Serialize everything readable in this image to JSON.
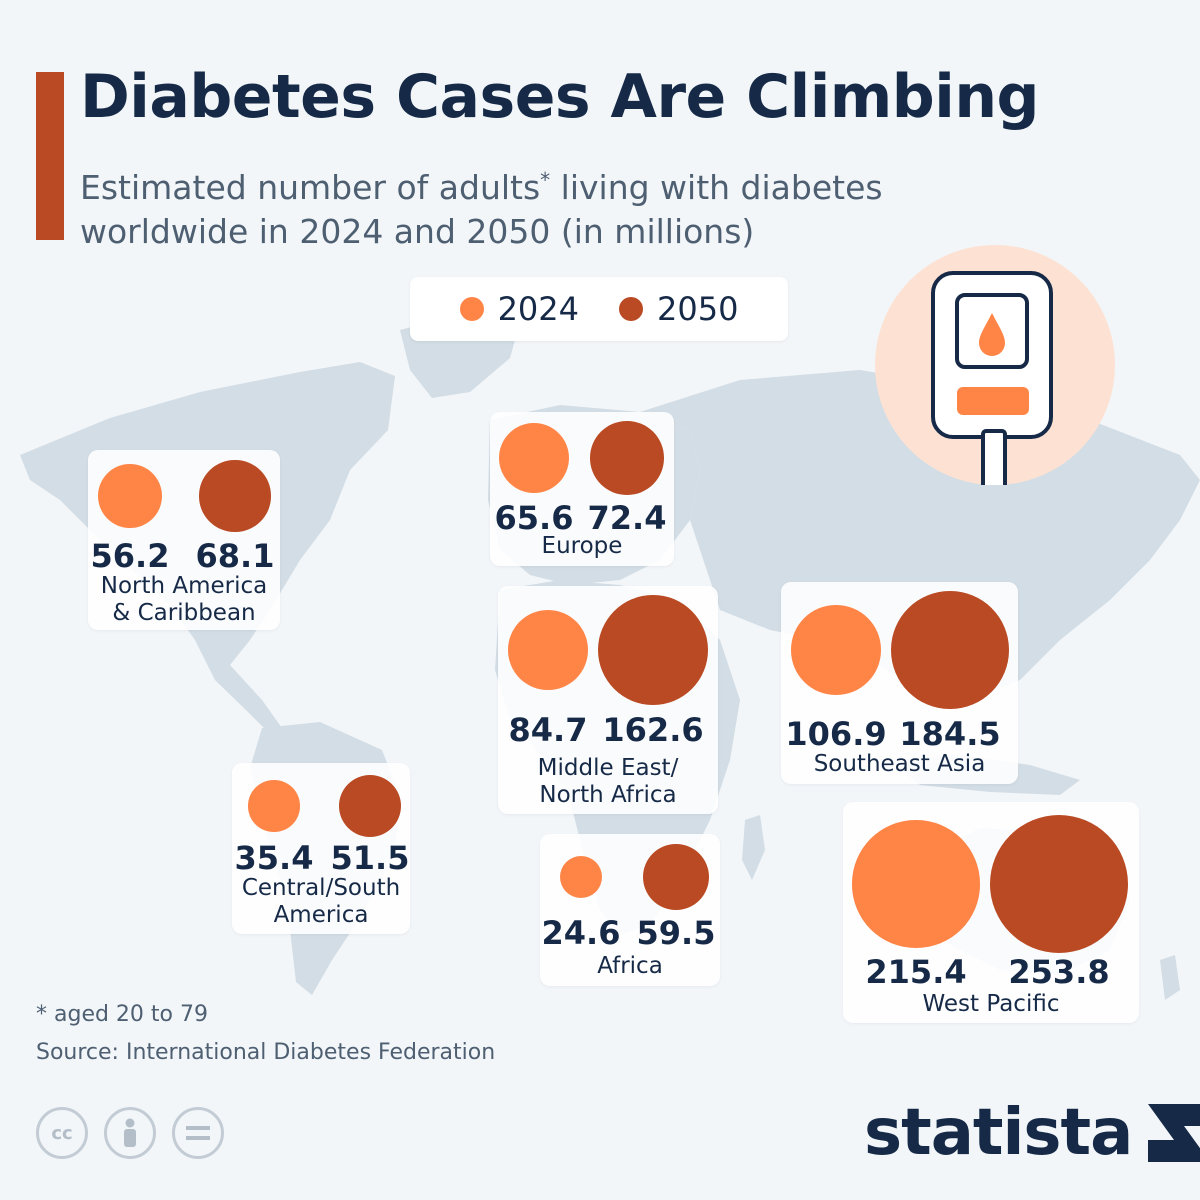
{
  "header": {
    "title": "Diabetes Cases Are Climbing",
    "subtitle_main": "Estimated number of adults",
    "subtitle_mark": "*",
    "subtitle_rest": " living with diabetes worldwide in 2024 and 2050 (in millions)"
  },
  "legend": {
    "items": [
      {
        "label": "2024",
        "color": "#ff8547"
      },
      {
        "label": "2050",
        "color": "#b94a23"
      }
    ]
  },
  "colors": {
    "accent": "#b94a23",
    "y2024": "#ff8547",
    "y2050": "#b94a23",
    "map": "#d3dde5",
    "title": "#162a47",
    "icon_bg": "#fde2d4"
  },
  "icons": [
    "glucose-meter-icon",
    "cc-license-icon",
    "attribution-icon",
    "no-derivatives-icon",
    "statista-logo-icon"
  ],
  "chart_data": {
    "type": "bubble",
    "title": "Diabetes Cases Are Climbing",
    "series_names": [
      "2024",
      "2050"
    ],
    "unit": "millions",
    "regions": [
      {
        "name": "North America\n& Caribbean",
        "v2024": 56.2,
        "v2050": 68.1
      },
      {
        "name": "Europe",
        "v2024": 65.6,
        "v2050": 72.4
      },
      {
        "name": "Middle East/\nNorth Africa",
        "v2024": 84.7,
        "v2050": 162.6
      },
      {
        "name": "Southeast Asia",
        "v2024": 106.9,
        "v2050": 184.5
      },
      {
        "name": "Central/South\nAmerica",
        "v2024": 35.4,
        "v2050": 51.5
      },
      {
        "name": "Africa",
        "v2024": 24.6,
        "v2050": 59.5
      },
      {
        "name": "West Pacific",
        "v2024": 215.4,
        "v2050": 253.8
      }
    ]
  },
  "footer": {
    "footnote": "* aged 20 to 79",
    "source": "Source: International Diabetes Federation",
    "brand": "statista",
    "cc_label": "cc"
  }
}
